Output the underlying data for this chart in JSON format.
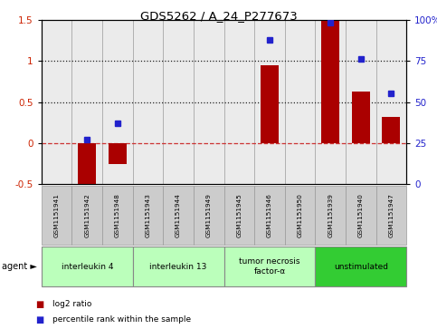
{
  "title": "GDS5262 / A_24_P277673",
  "samples": [
    "GSM1151941",
    "GSM1151942",
    "GSM1151948",
    "GSM1151943",
    "GSM1151944",
    "GSM1151949",
    "GSM1151945",
    "GSM1151946",
    "GSM1151950",
    "GSM1151939",
    "GSM1151940",
    "GSM1151947"
  ],
  "log2_ratio": [
    0.0,
    -0.5,
    -0.25,
    0.0,
    0.0,
    0.0,
    0.0,
    0.95,
    0.0,
    1.5,
    0.63,
    0.32
  ],
  "percentile": [
    null,
    27,
    37,
    null,
    null,
    null,
    null,
    88,
    null,
    98,
    76,
    55
  ],
  "ylim_left": [
    -0.5,
    1.5
  ],
  "ylim_right": [
    0,
    100
  ],
  "yticks_left": [
    -0.5,
    0.0,
    0.5,
    1.0,
    1.5
  ],
  "yticks_right": [
    0,
    25,
    50,
    75,
    100
  ],
  "ytick_labels_left": [
    "-0.5",
    "0",
    "0.5",
    "1",
    "1.5"
  ],
  "ytick_labels_right": [
    "0",
    "25",
    "50",
    "75",
    "100%"
  ],
  "hlines_dotted": [
    0.5,
    1.0
  ],
  "bar_color": "#aa0000",
  "dot_color": "#2222cc",
  "zero_line_color": "#cc3333",
  "hline_color": "#222222",
  "bg_color": "#ebebeb",
  "agent_groups": [
    {
      "label": "interleukin 4",
      "indices": [
        0,
        1,
        2
      ],
      "color": "#bbffbb"
    },
    {
      "label": "interleukin 13",
      "indices": [
        3,
        4,
        5
      ],
      "color": "#bbffbb"
    },
    {
      "label": "tumor necrosis\nfactor-α",
      "indices": [
        6,
        7,
        8
      ],
      "color": "#bbffbb"
    },
    {
      "label": "unstimulated",
      "indices": [
        9,
        10,
        11
      ],
      "color": "#33cc33"
    }
  ],
  "legend_log2": "log2 ratio",
  "legend_pct": "percentile rank within the sample",
  "agent_label": "agent",
  "bar_width": 0.6,
  "gsm_box_color": "#cccccc",
  "gsm_box_edge": "#999999"
}
